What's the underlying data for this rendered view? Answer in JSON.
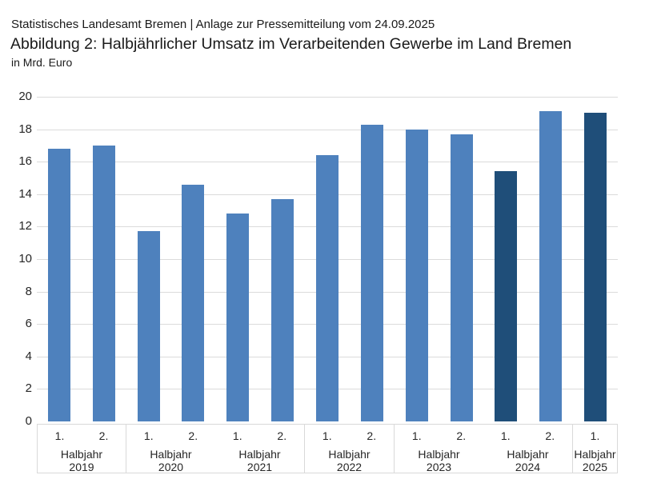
{
  "header": {
    "source_line": "Statistisches Landesamt Bremen | Anlage zur Pressemitteilung vom 24.09.2025",
    "title": "Abbildung 2: Halbjährlicher Umsatz im Verarbeitenden Gewerbe im Land Bremen",
    "unit_label": "in Mrd. Euro"
  },
  "chart_data": {
    "type": "bar",
    "title": "Abbildung 2: Halbjährlicher Umsatz im Verarbeitenden Gewerbe im Land Bremen",
    "ylabel": "in Mrd. Euro",
    "xlabel": "",
    "ylim": [
      0,
      20
    ],
    "ytick_step": 2,
    "grid": true,
    "legend": "none",
    "period_word": "Halbjahr",
    "categories": [
      "1. Halbjahr 2019",
      "2. Halbjahr 2019",
      "1. Halbjahr 2020",
      "2. Halbjahr 2020",
      "1. Halbjahr 2021",
      "2. Halbjahr 2021",
      "1. Halbjahr 2022",
      "2. Halbjahr 2022",
      "1. Halbjahr 2023",
      "2. Halbjahr 2023",
      "1. Halbjahr 2024",
      "2. Halbjahr 2024",
      "1. Halbjahr 2025"
    ],
    "values": [
      16.8,
      17.0,
      11.7,
      14.6,
      12.8,
      13.7,
      16.4,
      18.3,
      18.0,
      17.7,
      15.4,
      19.1,
      19.0
    ],
    "groups": [
      {
        "year": "2019",
        "bars": [
          {
            "half": "1.",
            "value": 16.8,
            "highlight": false
          },
          {
            "half": "2.",
            "value": 17.0,
            "highlight": false
          }
        ]
      },
      {
        "year": "2020",
        "bars": [
          {
            "half": "1.",
            "value": 11.7,
            "highlight": false
          },
          {
            "half": "2.",
            "value": 14.6,
            "highlight": false
          }
        ]
      },
      {
        "year": "2021",
        "bars": [
          {
            "half": "1.",
            "value": 12.8,
            "highlight": false
          },
          {
            "half": "2.",
            "value": 13.7,
            "highlight": false
          }
        ]
      },
      {
        "year": "2022",
        "bars": [
          {
            "half": "1.",
            "value": 16.4,
            "highlight": false
          },
          {
            "half": "2.",
            "value": 18.3,
            "highlight": false
          }
        ]
      },
      {
        "year": "2023",
        "bars": [
          {
            "half": "1.",
            "value": 18.0,
            "highlight": false
          },
          {
            "half": "2.",
            "value": 17.7,
            "highlight": false
          }
        ]
      },
      {
        "year": "2024",
        "bars": [
          {
            "half": "1.",
            "value": 15.4,
            "highlight": true
          },
          {
            "half": "2.",
            "value": 19.1,
            "highlight": false
          }
        ]
      },
      {
        "year": "2025",
        "bars": [
          {
            "half": "1.",
            "value": 19.0,
            "highlight": true
          }
        ]
      }
    ],
    "colors": {
      "bar_default": "#4e81bd",
      "bar_highlight": "#1f4e79",
      "gridline": "#dbdbdb",
      "axis_box_border": "#d9d9d9",
      "text": "#262626"
    }
  }
}
